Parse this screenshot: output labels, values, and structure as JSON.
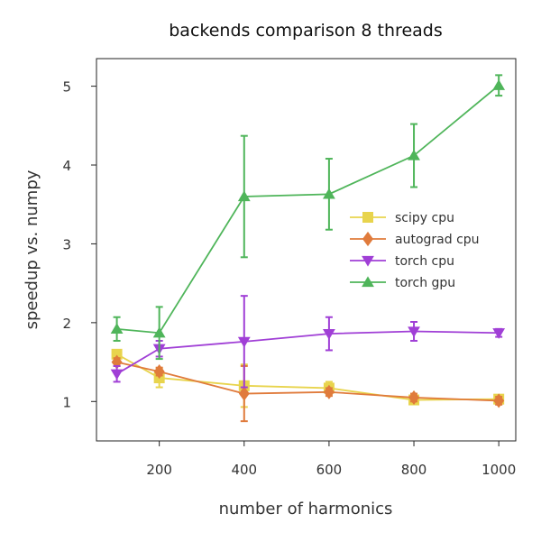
{
  "chart_data": {
    "type": "line",
    "title": "backends comparison 8 threads",
    "xlabel": "number of harmonics",
    "ylabel": "speedup vs. numpy",
    "xlim": [
      52,
      1040
    ],
    "ylim": [
      0.5,
      5.35
    ],
    "xticks": [
      200,
      400,
      600,
      800,
      1000
    ],
    "yticks": [
      1,
      2,
      3,
      4,
      5
    ],
    "x": [
      100,
      200,
      400,
      600,
      800,
      1000
    ],
    "grid": false,
    "legend_position": "center-right",
    "series": [
      {
        "name": "scipy cpu",
        "color": "#e8d44d",
        "marker": "square",
        "values": [
          1.6,
          1.3,
          1.2,
          1.17,
          1.02,
          1.03
        ],
        "err": [
          0.05,
          0.12,
          0.27,
          0.08,
          0.05,
          0.05
        ]
      },
      {
        "name": "autograd cpu",
        "color": "#e07b3c",
        "marker": "diamond",
        "values": [
          1.5,
          1.38,
          1.1,
          1.12,
          1.05,
          1.01
        ],
        "err": [
          0.05,
          0.05,
          0.35,
          0.05,
          0.05,
          0.05
        ]
      },
      {
        "name": "torch cpu",
        "color": "#a03fd6",
        "marker": "triangle-down",
        "values": [
          1.35,
          1.67,
          1.76,
          1.86,
          1.89,
          1.87
        ],
        "err": [
          0.1,
          0.1,
          0.58,
          0.21,
          0.12,
          0.05
        ]
      },
      {
        "name": "torch gpu",
        "color": "#4fb55a",
        "marker": "triangle-up",
        "values": [
          1.92,
          1.87,
          3.6,
          3.63,
          4.12,
          5.01
        ],
        "err": [
          0.15,
          0.33,
          0.77,
          0.45,
          0.4,
          0.13
        ]
      }
    ]
  }
}
